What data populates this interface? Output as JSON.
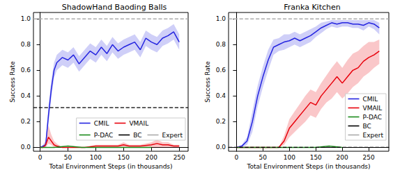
{
  "chart_data": [
    {
      "type": "line",
      "title": "ShadowHand Baoding Balls",
      "x_label": "Total Environment Steps (in thousands)",
      "y_label": "Success Rate",
      "xlim": [
        -12,
        266
      ],
      "xticks": [
        0,
        50,
        100,
        150,
        200,
        250
      ],
      "ylim": [
        -0.03,
        1.05
      ],
      "yticks": [
        {
          "value": 0,
          "label": "0.0"
        },
        0.2,
        0.4,
        0.6,
        0.8,
        {
          "value": 1,
          "label": "1.0"
        }
      ],
      "grid": false,
      "legend": "lower right",
      "series": [
        {
          "name": "CMIL",
          "color": "#2424e0",
          "line_style": "solid",
          "x": [
            0,
            5,
            10,
            15,
            20,
            25,
            30,
            40,
            50,
            60,
            70,
            80,
            90,
            100,
            110,
            120,
            130,
            140,
            150,
            160,
            170,
            180,
            190,
            200,
            210,
            220,
            230,
            240,
            250
          ],
          "values": [
            0,
            0.01,
            0.02,
            0.25,
            0.45,
            0.6,
            0.66,
            0.7,
            0.68,
            0.72,
            0.65,
            0.7,
            0.75,
            0.72,
            0.78,
            0.73,
            0.8,
            0.75,
            0.78,
            0.8,
            0.82,
            0.76,
            0.85,
            0.82,
            0.8,
            0.85,
            0.87,
            0.9,
            0.82
          ],
          "lower": [
            0,
            0,
            0,
            0.18,
            0.38,
            0.54,
            0.6,
            0.64,
            0.62,
            0.66,
            0.59,
            0.64,
            0.69,
            0.66,
            0.72,
            0.67,
            0.74,
            0.69,
            0.72,
            0.74,
            0.76,
            0.7,
            0.79,
            0.76,
            0.74,
            0.79,
            0.81,
            0.84,
            0.76
          ],
          "upper": [
            0,
            0.02,
            0.05,
            0.32,
            0.52,
            0.66,
            0.72,
            0.76,
            0.74,
            0.78,
            0.71,
            0.76,
            0.81,
            0.78,
            0.84,
            0.79,
            0.86,
            0.81,
            0.84,
            0.86,
            0.88,
            0.82,
            0.91,
            0.88,
            0.86,
            0.91,
            0.93,
            0.96,
            0.88
          ]
        },
        {
          "name": "VMAIL",
          "color": "#e8000b",
          "line_style": "solid",
          "x": [
            0,
            5,
            10,
            15,
            20,
            25,
            30,
            40,
            50,
            60,
            80,
            100,
            120,
            140,
            150,
            160,
            180,
            200,
            210,
            220,
            230,
            240,
            250
          ],
          "values": [
            0,
            0,
            0.02,
            0.08,
            0.05,
            0.02,
            0.01,
            0,
            0,
            0,
            0,
            0.01,
            0.01,
            0.01,
            0.02,
            0.01,
            0.01,
            0.02,
            0.03,
            0.02,
            0.02,
            0.01,
            0.01
          ],
          "lower": [
            0,
            0,
            0,
            0.03,
            0.02,
            0,
            0,
            0,
            0,
            0,
            0,
            0,
            0,
            0,
            0,
            0,
            0,
            0,
            0,
            0,
            0,
            0,
            0
          ],
          "upper": [
            0,
            0,
            0.05,
            0.17,
            0.1,
            0.05,
            0.03,
            0,
            0,
            0,
            0,
            0.02,
            0.02,
            0.02,
            0.04,
            0.02,
            0.02,
            0.04,
            0.06,
            0.04,
            0.04,
            0.02,
            0.02
          ]
        },
        {
          "name": "P-DAC",
          "color": "#1a8a1a",
          "line_style": "solid",
          "x": [
            0,
            25,
            50,
            75,
            100,
            125,
            150,
            175,
            200
          ],
          "values": [
            0,
            0,
            0.01,
            0,
            0,
            0,
            0,
            0,
            0
          ]
        },
        {
          "name": "BC",
          "color": "#000000",
          "line_style": "dashed",
          "type": "hline",
          "values": [
            0.31
          ]
        },
        {
          "name": "Expert",
          "color": "#aaaaaa",
          "line_style": "dashed",
          "type": "hline",
          "values": [
            1
          ]
        }
      ]
    },
    {
      "type": "line",
      "title": "Franka Kitchen",
      "x_label": "Total Environment Steps (in thousands)",
      "y_label": "Success Rate",
      "xlim": [
        -15,
        288
      ],
      "xticks": [
        0,
        50,
        100,
        150,
        200,
        250
      ],
      "ylim": [
        -0.03,
        1.05
      ],
      "yticks": [
        {
          "value": 0,
          "label": "0.0"
        },
        0.2,
        0.4,
        0.6,
        0.8,
        {
          "value": 1,
          "label": "1.0"
        }
      ],
      "grid": false,
      "legend": "lower right",
      "series": [
        {
          "name": "CMIL",
          "color": "#2424e0",
          "line_style": "solid",
          "x": [
            0,
            10,
            20,
            30,
            40,
            50,
            60,
            70,
            80,
            90,
            100,
            110,
            120,
            130,
            140,
            150,
            160,
            170,
            180,
            190,
            200,
            210,
            220,
            230,
            240,
            250,
            260,
            270
          ],
          "values": [
            0,
            0.01,
            0.05,
            0.2,
            0.4,
            0.55,
            0.68,
            0.78,
            0.8,
            0.82,
            0.83,
            0.85,
            0.83,
            0.85,
            0.87,
            0.9,
            0.93,
            0.95,
            0.97,
            0.96,
            0.97,
            0.97,
            0.96,
            0.96,
            0.95,
            0.97,
            0.96,
            0.93
          ],
          "lower": [
            0,
            0,
            0.02,
            0.12,
            0.32,
            0.47,
            0.6,
            0.72,
            0.75,
            0.76,
            0.78,
            0.8,
            0.78,
            0.8,
            0.82,
            0.86,
            0.89,
            0.92,
            0.94,
            0.93,
            0.94,
            0.94,
            0.93,
            0.93,
            0.91,
            0.94,
            0.92,
            0.88
          ],
          "upper": [
            0,
            0.02,
            0.08,
            0.28,
            0.48,
            0.63,
            0.76,
            0.84,
            0.85,
            0.88,
            0.88,
            0.9,
            0.88,
            0.9,
            0.92,
            0.94,
            0.97,
            0.98,
            0.99,
            0.99,
            0.99,
            0.99,
            0.99,
            0.99,
            0.99,
            0.99,
            0.99,
            0.97
          ]
        },
        {
          "name": "VMAIL",
          "color": "#e8000b",
          "line_style": "solid",
          "x": [
            0,
            20,
            40,
            60,
            80,
            90,
            100,
            110,
            120,
            130,
            140,
            150,
            160,
            170,
            180,
            190,
            200,
            210,
            220,
            230,
            240,
            250,
            260,
            270
          ],
          "values": [
            0,
            0,
            0,
            0,
            0,
            0.05,
            0.15,
            0.2,
            0.25,
            0.3,
            0.35,
            0.33,
            0.4,
            0.45,
            0.5,
            0.55,
            0.5,
            0.55,
            0.6,
            0.62,
            0.67,
            0.7,
            0.72,
            0.75
          ],
          "lower": [
            0,
            0,
            0,
            0,
            0,
            0.02,
            0.08,
            0.12,
            0.16,
            0.2,
            0.25,
            0.23,
            0.3,
            0.35,
            0.38,
            0.43,
            0.38,
            0.42,
            0.47,
            0.5,
            0.55,
            0.58,
            0.62,
            0.65
          ],
          "upper": [
            0,
            0,
            0,
            0,
            0,
            0.09,
            0.22,
            0.28,
            0.34,
            0.4,
            0.45,
            0.43,
            0.5,
            0.56,
            0.62,
            0.67,
            0.62,
            0.68,
            0.73,
            0.75,
            0.79,
            0.82,
            0.82,
            0.84
          ]
        },
        {
          "name": "P-DAC",
          "color": "#1a8a1a",
          "line_style": "solid",
          "x": [
            0,
            25,
            50,
            75,
            100,
            125,
            150,
            175,
            200
          ],
          "values": [
            0,
            0,
            0,
            0,
            0,
            0,
            0,
            0.01,
            0
          ]
        },
        {
          "name": "BC",
          "color": "#000000",
          "line_style": "dashed",
          "type": "hline",
          "values": [
            0
          ]
        },
        {
          "name": "Expert",
          "color": "#aaaaaa",
          "line_style": "dashed",
          "type": "hline",
          "values": [
            1
          ]
        }
      ]
    }
  ]
}
